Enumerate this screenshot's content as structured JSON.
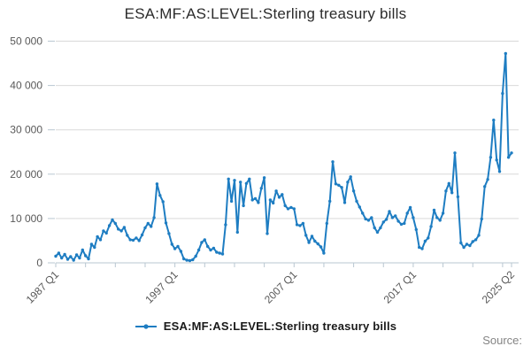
{
  "title": "ESA:MF:AS:LEVEL:Sterling treasury bills",
  "legend": {
    "label": "ESA:MF:AS:LEVEL:Sterling treasury bills"
  },
  "source_label": "Source:",
  "colors": {
    "line": "#1e7dc2",
    "grid": "#d9d9d9",
    "axis": "#b9c7d1",
    "tick_text": "#595959",
    "title_text": "#2b2b2b",
    "legend_text": "#1a1a1a",
    "source_text": "#848484"
  },
  "chart_data": {
    "type": "line",
    "title": "ESA:MF:AS:LEVEL:Sterling treasury bills",
    "xlabel": "",
    "ylabel": "",
    "frequency": "quarterly",
    "x_start": "1987 Q1",
    "x_end": "2025 Q2",
    "ylim": [
      0,
      50000
    ],
    "grid": "horizontal",
    "legend_position": "bottom",
    "y_tick_labels": [
      "0",
      "10 000",
      "20 000",
      "30 000",
      "40 000",
      "50 000"
    ],
    "x_ticks": [
      {
        "label": "1987 Q1",
        "q": 0
      },
      {
        "label": "1997 Q1",
        "q": 40
      },
      {
        "label": "2007 Q1",
        "q": 80
      },
      {
        "label": "2017 Q1",
        "q": 120
      },
      {
        "label": "2025 Q2",
        "q": 153
      }
    ],
    "minor_tick_interval_quarters": 10,
    "series": [
      {
        "name": "ESA:MF:AS:LEVEL:Sterling treasury bills",
        "values": [
          1500,
          2200,
          1100,
          1900,
          800,
          1400,
          600,
          1800,
          1100,
          2900,
          1600,
          900,
          4200,
          3500,
          5900,
          5200,
          7200,
          6700,
          8400,
          9700,
          8900,
          7600,
          7200,
          8000,
          6200,
          5200,
          5100,
          5600,
          5000,
          6300,
          7900,
          8900,
          8200,
          10200,
          17800,
          15200,
          13800,
          9000,
          6600,
          4200,
          3200,
          3700,
          2600,
          900,
          600,
          500,
          700,
          1500,
          2900,
          4600,
          5200,
          3700,
          2900,
          3300,
          2400,
          2200,
          2000,
          8600,
          18900,
          13900,
          18600,
          6900,
          18200,
          12900,
          17900,
          18900,
          14200,
          14500,
          13600,
          16800,
          19200,
          6600,
          14200,
          13500,
          16200,
          14800,
          15400,
          12900,
          12200,
          12500,
          12200,
          8600,
          8400,
          8900,
          6200,
          4600,
          6000,
          4900,
          4300,
          3600,
          2200,
          8900,
          13900,
          22800,
          17800,
          17500,
          17000,
          13600,
          18200,
          19400,
          16200,
          13900,
          12600,
          11200,
          9900,
          9600,
          10200,
          7900,
          6900,
          7900,
          9200,
          9800,
          11600,
          10200,
          10600,
          9400,
          8700,
          8900,
          11200,
          12500,
          10200,
          7500,
          3500,
          3200,
          4900,
          5600,
          8200,
          11900,
          10200,
          9600,
          11200,
          16200,
          17900,
          15800,
          24800,
          14900,
          4500,
          3500,
          4200,
          3900,
          4800,
          5200,
          6200,
          9900,
          17200,
          18800,
          23800,
          32200,
          23200,
          20600,
          38200,
          47200,
          23800,
          24800
        ]
      }
    ]
  }
}
